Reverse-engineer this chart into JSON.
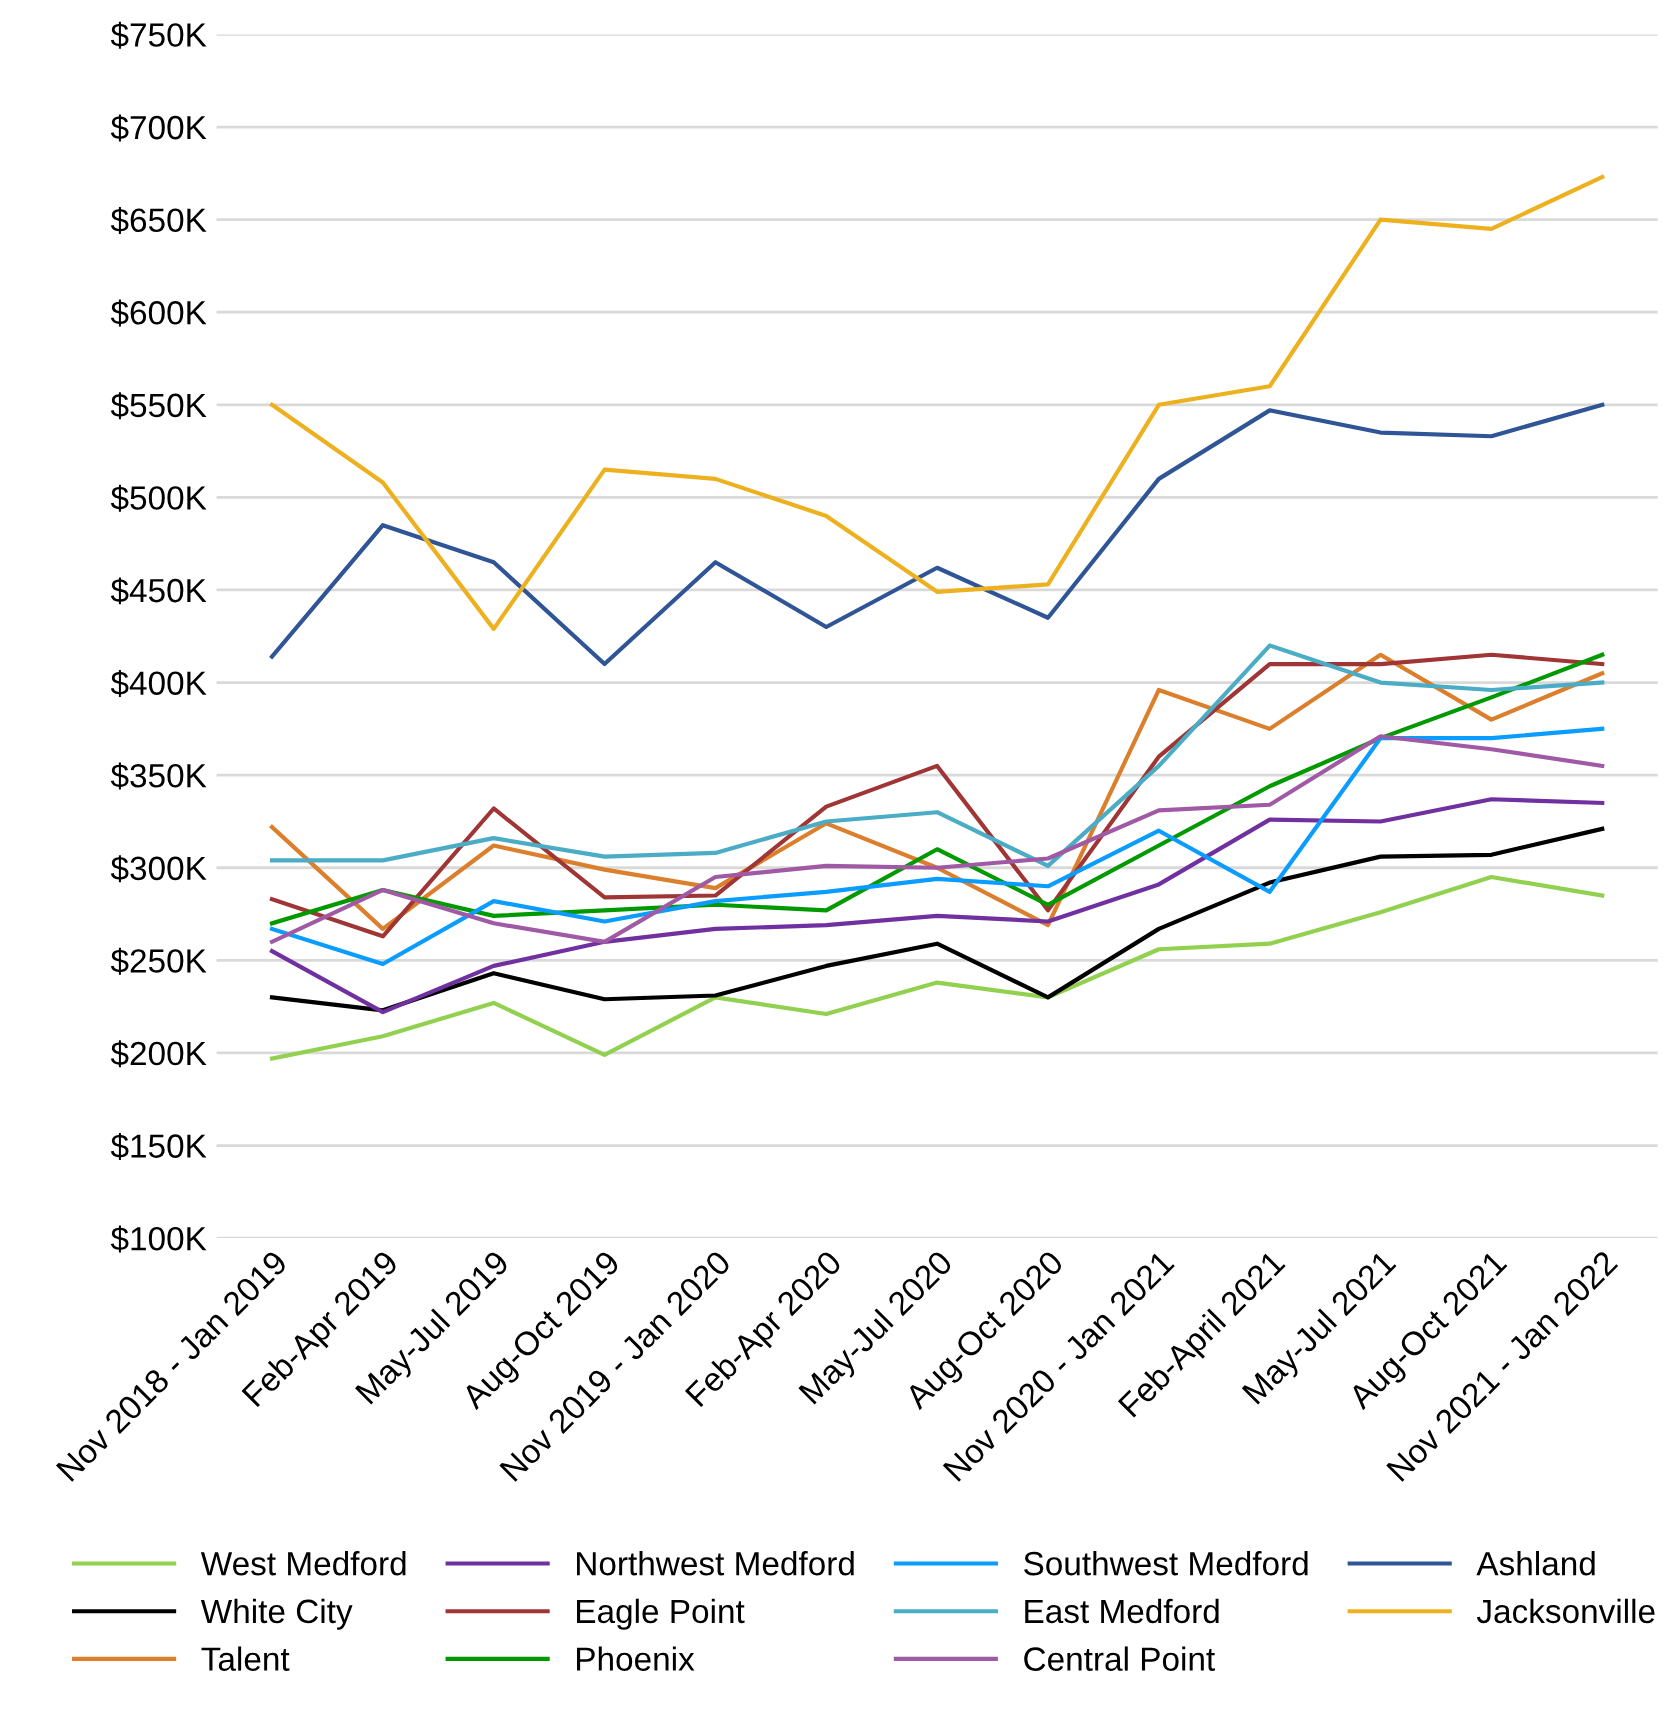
{
  "chart_data": {
    "type": "line",
    "categories": [
      "Nov 2018 - Jan 2019",
      "Feb-Apr 2019",
      "May-Jul 2019",
      "Aug-Oct 2019",
      "Nov 2019 - Jan 2020",
      "Feb-Apr 2020",
      "May-Jul 2020",
      "Aug-Oct 2020",
      "Nov 2020 - Jan 2021",
      "Feb-April 2021",
      "May-Jul 2021",
      "Aug-Oct 2021",
      "Nov 2021 - Jan 2022"
    ],
    "series": [
      {
        "name": "West Medford",
        "color": "#92d050",
        "values": [
          197,
          209,
          227,
          199,
          230,
          221,
          238,
          230,
          256,
          259,
          276,
          295,
          285
        ]
      },
      {
        "name": "White City",
        "color": "#000000",
        "values": [
          230,
          223,
          243,
          229,
          231,
          247,
          259,
          230,
          267,
          292,
          306,
          307,
          321
        ]
      },
      {
        "name": "Talent",
        "color": "#dc7f2c",
        "values": [
          322,
          267,
          312,
          299,
          289,
          324,
          300,
          269,
          396,
          375,
          415,
          380,
          405
        ]
      },
      {
        "name": "Northwest Medford",
        "color": "#7030a0",
        "values": [
          255,
          222,
          247,
          260,
          267,
          269,
          274,
          271,
          291,
          326,
          325,
          337,
          335
        ]
      },
      {
        "name": "Eagle Point",
        "color": "#a03535",
        "values": [
          283,
          263,
          332,
          284,
          285,
          333,
          355,
          277,
          360,
          410,
          410,
          415,
          410
        ]
      },
      {
        "name": "Phoenix",
        "color": "#009a00",
        "values": [
          270,
          288,
          274,
          277,
          280,
          277,
          310,
          280,
          312,
          344,
          370,
          392,
          415
        ]
      },
      {
        "name": "Southwest Medford",
        "color": "#0a9cff",
        "values": [
          267,
          248,
          282,
          271,
          282,
          287,
          294,
          290,
          320,
          287,
          370,
          370,
          375
        ]
      },
      {
        "name": "East Medford",
        "color": "#4bacc6",
        "values": [
          304,
          304,
          316,
          306,
          308,
          325,
          330,
          301,
          355,
          420,
          400,
          396,
          400
        ]
      },
      {
        "name": "Central Point",
        "color": "#a05aa5",
        "values": [
          260,
          288,
          270,
          260,
          295,
          301,
          300,
          305,
          331,
          334,
          371,
          364,
          355
        ]
      },
      {
        "name": "Ashland",
        "color": "#2f5597",
        "values": [
          414,
          485,
          465,
          410,
          465,
          430,
          462,
          435,
          510,
          547,
          535,
          533,
          550
        ]
      },
      {
        "name": "Jacksonville",
        "color": "#edb120",
        "values": [
          550,
          508,
          429,
          515,
          510,
          490,
          449,
          453,
          550,
          560,
          650,
          645,
          673
        ]
      }
    ],
    "ylim": [
      100,
      750
    ],
    "yticks": [
      {
        "value": 100,
        "label": "$100K"
      },
      {
        "value": 150,
        "label": "$150K"
      },
      {
        "value": 200,
        "label": "$200K"
      },
      {
        "value": 250,
        "label": "$250K"
      },
      {
        "value": 300,
        "label": "$300K"
      },
      {
        "value": 350,
        "label": "$350K"
      },
      {
        "value": 400,
        "label": "$400K"
      },
      {
        "value": 450,
        "label": "$450K"
      },
      {
        "value": 500,
        "label": "$500K"
      },
      {
        "value": 550,
        "label": "$550K"
      },
      {
        "value": 600,
        "label": "$600K"
      },
      {
        "value": 650,
        "label": "$650K"
      },
      {
        "value": 700,
        "label": "$700K"
      },
      {
        "value": 750,
        "label": "$750K"
      }
    ],
    "grid": "y",
    "legend": "bottom",
    "marker": "none",
    "line_style": "solid"
  }
}
